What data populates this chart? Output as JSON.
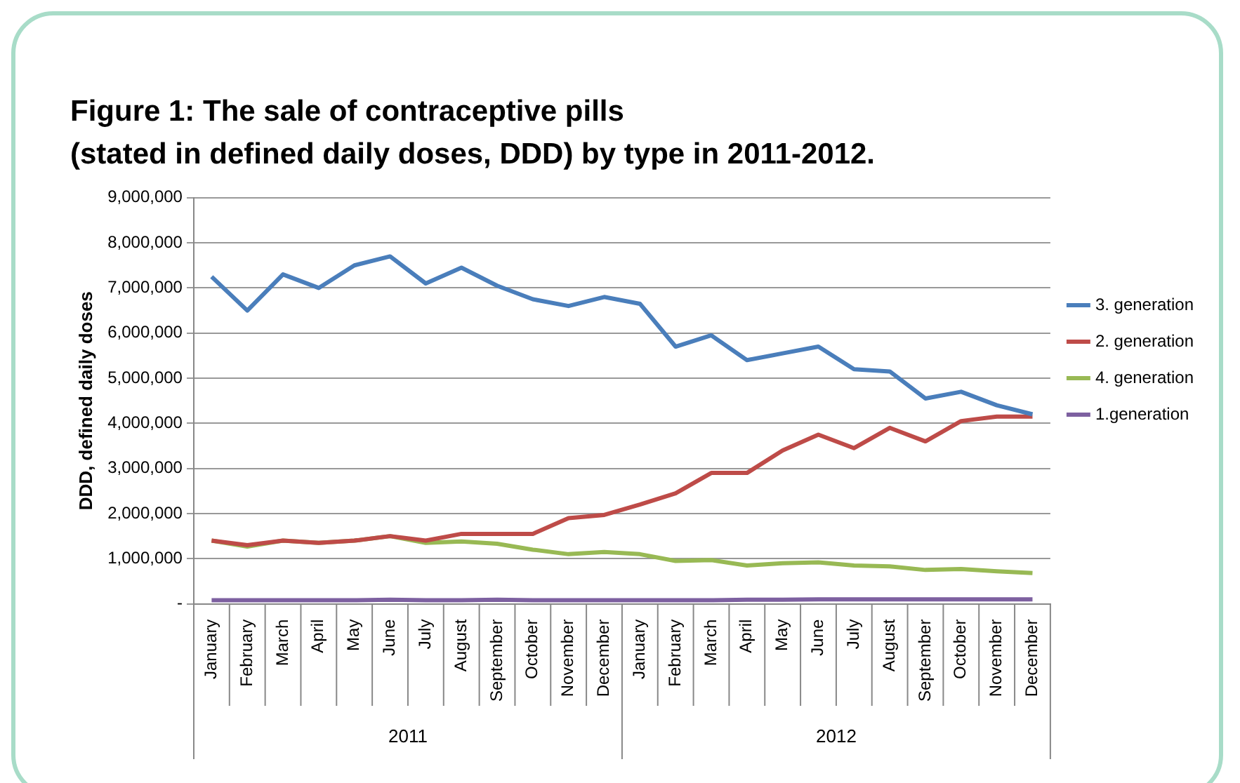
{
  "chart_data": {
    "type": "line",
    "title": "Figure 1: The sale of contraceptive pills\n(stated in defined daily doses, DDD) by type in 2011-2012.",
    "ylabel": "DDD, defined daily doses",
    "categories": [
      "January",
      "February",
      "March",
      "April",
      "May",
      "June",
      "July",
      "August",
      "September",
      "October",
      "November",
      "December",
      "January",
      "February",
      "March",
      "April",
      "May",
      "June",
      "July",
      "August",
      "September",
      "October",
      "November",
      "December"
    ],
    "annotations": [
      "2011",
      "2012"
    ],
    "series": [
      {
        "name": "3. generation",
        "color": "#4a7ebb",
        "values": [
          7250000,
          6500000,
          7300000,
          7000000,
          7500000,
          7700000,
          7100000,
          7450000,
          7050000,
          6750000,
          6600000,
          6800000,
          6650000,
          5700000,
          5950000,
          5400000,
          5550000,
          5700000,
          5200000,
          5150000,
          4550000,
          4700000,
          4400000,
          4200000
        ]
      },
      {
        "name": "2. generation",
        "color": "#be4b48",
        "values": [
          1400000,
          1300000,
          1400000,
          1350000,
          1400000,
          1500000,
          1400000,
          1550000,
          1550000,
          1550000,
          1900000,
          1970000,
          2200000,
          2450000,
          2900000,
          2900000,
          3400000,
          3750000,
          3450000,
          3900000,
          3600000,
          4050000,
          4150000,
          4150000
        ]
      },
      {
        "name": "4. generation",
        "color": "#98b954",
        "values": [
          1400000,
          1270000,
          1400000,
          1350000,
          1400000,
          1500000,
          1350000,
          1380000,
          1330000,
          1200000,
          1100000,
          1150000,
          1100000,
          950000,
          970000,
          850000,
          900000,
          920000,
          850000,
          830000,
          750000,
          770000,
          720000,
          680000
        ]
      },
      {
        "name": "1.generation",
        "color": "#7d60a0",
        "values": [
          80000,
          80000,
          80000,
          80000,
          80000,
          90000,
          80000,
          80000,
          90000,
          80000,
          80000,
          80000,
          80000,
          80000,
          80000,
          90000,
          90000,
          100000,
          100000,
          100000,
          100000,
          100000,
          100000,
          100000
        ]
      }
    ],
    "ylim": [
      0,
      9000000
    ],
    "yticks": [
      {
        "value": 0,
        "label": "-"
      },
      {
        "value": 1000000,
        "label": "1,000,000"
      },
      {
        "value": 2000000,
        "label": "2,000,000"
      },
      {
        "value": 3000000,
        "label": "3,000,000"
      },
      {
        "value": 4000000,
        "label": "4,000,000"
      },
      {
        "value": 5000000,
        "label": "5,000,000"
      },
      {
        "value": 6000000,
        "label": "6,000,000"
      },
      {
        "value": 7000000,
        "label": "7,000,000"
      },
      {
        "value": 8000000,
        "label": "8,000,000"
      },
      {
        "value": 9000000,
        "label": "9,000,000"
      }
    ],
    "grid": "y",
    "legend": "right",
    "marker": "none",
    "line_style": "solid"
  }
}
